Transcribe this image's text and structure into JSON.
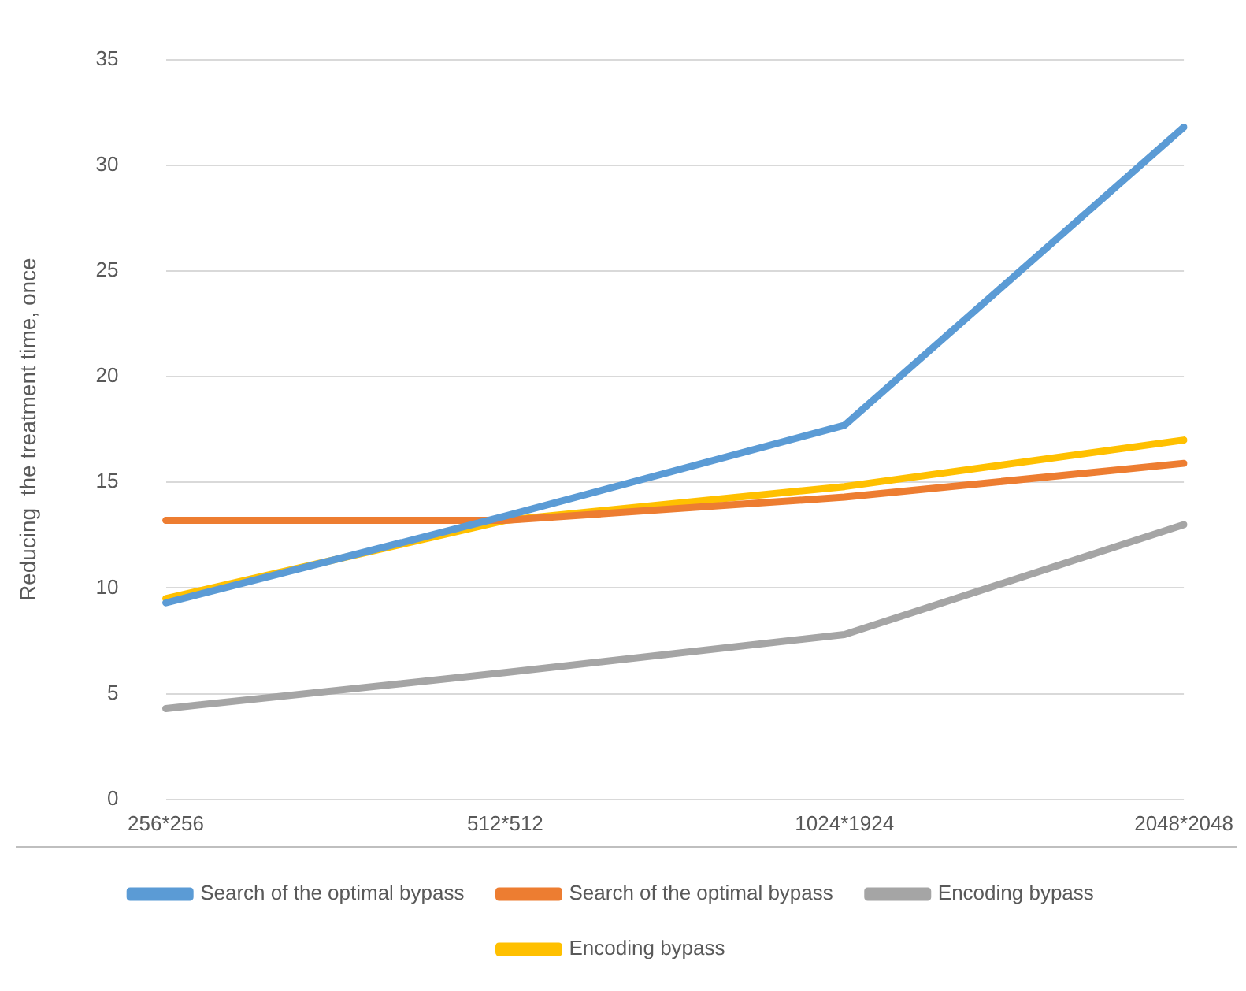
{
  "chart_data": {
    "type": "line",
    "ylabel": "Reducing  the treatment time, once",
    "categories": [
      "256*256",
      "512*512",
      "1024*1924",
      "2048*2048"
    ],
    "series": [
      {
        "name": "Search of the optimal bypass",
        "color": "#5b9bd5",
        "values": [
          9.3,
          13.4,
          17.7,
          31.8
        ]
      },
      {
        "name": "Search of the optimal bypass",
        "color": "#ed7d31",
        "values": [
          13.2,
          13.2,
          14.3,
          15.9
        ]
      },
      {
        "name": "Encoding bypass",
        "color": "#a5a5a5",
        "values": [
          4.3,
          6.0,
          7.8,
          13.0
        ]
      },
      {
        "name": "Encoding bypass",
        "color": "#ffc000",
        "values": [
          9.5,
          13.2,
          14.8,
          17.0
        ]
      }
    ],
    "ylim": [
      0,
      35
    ],
    "yticks": [
      0,
      5,
      10,
      15,
      20,
      25,
      30,
      35
    ],
    "grid": "y",
    "legend": "bottom",
    "marker": "none",
    "line_style": "solid"
  }
}
